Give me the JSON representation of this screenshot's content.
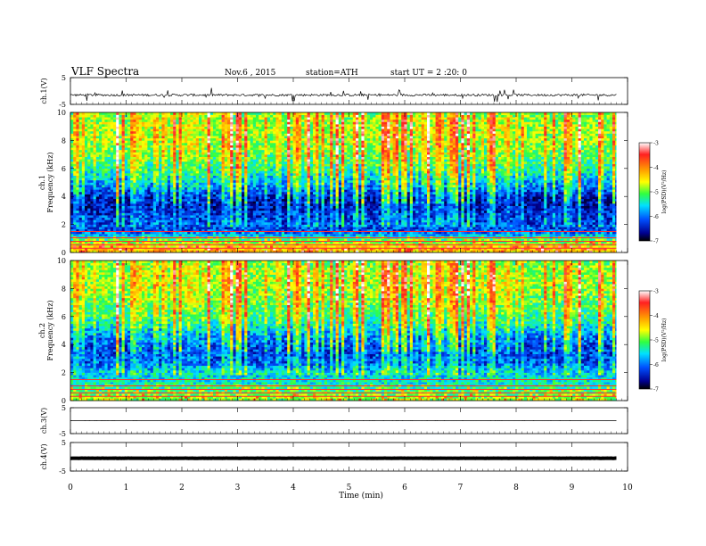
{
  "header": {
    "title": "VLF Spectra",
    "date": "Nov.6 , 2015",
    "station": "station=ATH",
    "start": "start UT = 2 :20: 0"
  },
  "colorbar": {
    "label": "log(PSD)(V²/Hz)",
    "ticks": [
      "-3",
      "-4",
      "-5",
      "-6",
      "-7"
    ],
    "colors": [
      "#ffffff",
      "#ff2020",
      "#ffa000",
      "#ffff00",
      "#30ff40",
      "#00e0ff",
      "#0050ff",
      "#000090",
      "#000000"
    ]
  },
  "chart_data": [
    {
      "type": "line",
      "panel": "ch1-waveform",
      "ylabel": "ch.1(V)",
      "ylim": [
        -5,
        5
      ],
      "yticks": [
        "5",
        "-5"
      ],
      "xlim": [
        0,
        10
      ],
      "level_v": -1.5,
      "trace_end_min": 9.8
    },
    {
      "type": "heatmap",
      "panel": "ch1-spectrogram",
      "ylabel_top": "ch.1",
      "ylabel": "Frequency (kHz)",
      "ylim": [
        0,
        10
      ],
      "yticks": [
        "0",
        "2",
        "4",
        "6",
        "8",
        "10"
      ],
      "xlim": [
        0,
        10
      ],
      "z_range": [
        -7,
        -3
      ],
      "trace_end_min": 9.8,
      "freq_khz": [
        0.3,
        0.9,
        1.5,
        2.1,
        2.7,
        3.3,
        3.9,
        4.5,
        5.1,
        5.7,
        6.3,
        6.9,
        7.5,
        8.1,
        8.7,
        9.3,
        9.8
      ],
      "mean_log_psd": [
        -4.2,
        -5.0,
        -6.0,
        -6.1,
        -6.2,
        -6.4,
        -6.4,
        -6.0,
        -5.7,
        -5.4,
        -5.2,
        -5.0,
        -4.9,
        -4.8,
        -4.8,
        -4.8,
        -4.9
      ]
    },
    {
      "type": "heatmap",
      "panel": "ch2-spectrogram",
      "ylabel_top": "ch.2",
      "ylabel": "Frequency (kHz)",
      "ylim": [
        0,
        10
      ],
      "yticks": [
        "0",
        "2",
        "4",
        "6",
        "8",
        "10"
      ],
      "xlim": [
        0,
        10
      ],
      "z_range": [
        -7,
        -3
      ],
      "trace_end_min": 9.8,
      "freq_khz": [
        0.3,
        0.9,
        1.5,
        2.1,
        2.7,
        3.3,
        3.9,
        4.5,
        5.1,
        5.7,
        6.3,
        6.9,
        7.5,
        8.1,
        8.7,
        9.3,
        9.8
      ],
      "mean_log_psd": [
        -4.8,
        -5.2,
        -5.4,
        -5.6,
        -6.0,
        -6.1,
        -6.1,
        -5.9,
        -5.6,
        -5.3,
        -5.1,
        -5.0,
        -4.9,
        -4.8,
        -4.8,
        -4.8,
        -4.9
      ]
    },
    {
      "type": "line",
      "panel": "ch3-waveform",
      "ylabel": "ch.3(V)",
      "ylim": [
        -5,
        5
      ],
      "yticks": [
        "5",
        "-5"
      ],
      "xlim": [
        0,
        10
      ],
      "level_v": 0,
      "trace_end_min": 9.8
    },
    {
      "type": "line",
      "panel": "ch4-waveform",
      "ylabel": "ch.4(V)",
      "ylim": [
        -5,
        5
      ],
      "yticks": [
        "5",
        "-5"
      ],
      "xlim": [
        0,
        10
      ],
      "level_v": -0.5,
      "trace_end_min": 9.8
    }
  ],
  "xaxis": {
    "label": "Time (min)",
    "ticks": [
      "0",
      "1",
      "2",
      "3",
      "4",
      "5",
      "6",
      "7",
      "8",
      "9",
      "10"
    ]
  }
}
